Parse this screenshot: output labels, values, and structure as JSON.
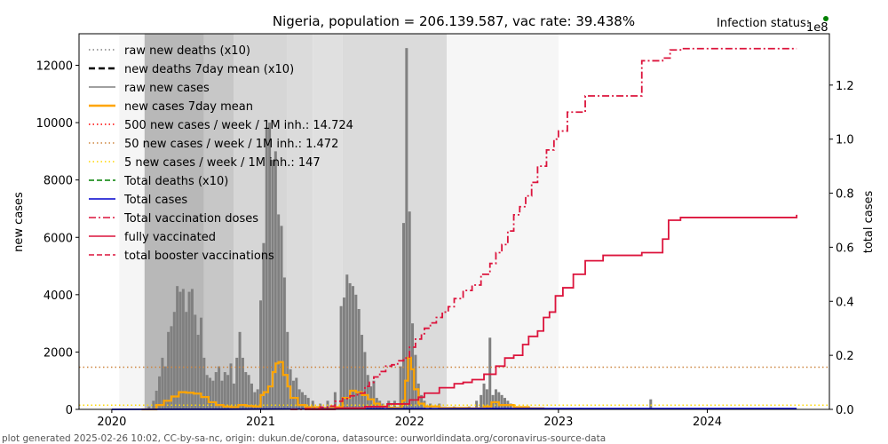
{
  "chart_data": {
    "type": "bar",
    "title": "Nigeria, population = 206.139.587, vac rate: 39.438%",
    "status_label": "Infection status:",
    "status_color": "#008000",
    "right_axis_multiplier": "1e8",
    "footer": "plot generated 2025-02-26 10:02, CC-by-sa-nc, origin: dukun.de/corona, datasource: ourworldindata.org/coronavirus-source-data",
    "xlabel": "",
    "ylabel": "new cases",
    "y2label": "total cases",
    "xlim": [
      2019.78,
      2024.82
    ],
    "ylim": [
      0,
      13100
    ],
    "y2lim": [
      0,
      1.39
    ],
    "x_ticks": [
      {
        "v": 2020,
        "label": "2020"
      },
      {
        "v": 2021,
        "label": "2021"
      },
      {
        "v": 2022,
        "label": "2022"
      },
      {
        "v": 2023,
        "label": "2023"
      },
      {
        "v": 2024,
        "label": "2024"
      }
    ],
    "y_ticks": [
      {
        "v": 0,
        "label": "0"
      },
      {
        "v": 2000,
        "label": "2000"
      },
      {
        "v": 4000,
        "label": "4000"
      },
      {
        "v": 6000,
        "label": "6000"
      },
      {
        "v": 8000,
        "label": "8000"
      },
      {
        "v": 10000,
        "label": "10000"
      },
      {
        "v": 12000,
        "label": "12000"
      }
    ],
    "y2_ticks": [
      {
        "v": 0,
        "label": "0.0"
      },
      {
        "v": 0.2,
        "label": "0.2"
      },
      {
        "v": 0.4,
        "label": "0.4"
      },
      {
        "v": 0.6,
        "label": "0.6"
      },
      {
        "v": 0.8,
        "label": "0.8"
      },
      {
        "v": 1.0,
        "label": "1.0"
      },
      {
        "v": 1.2,
        "label": "1.2"
      }
    ],
    "legend": [
      {
        "label": "raw new deaths (x10)",
        "color": "#808080",
        "style": "dotted"
      },
      {
        "label": "new deaths 7day mean (x10)",
        "color": "#000000",
        "style": "dashed-bold"
      },
      {
        "label": "raw new cases",
        "color": "#808080",
        "style": "solid"
      },
      {
        "label": "new cases 7day mean",
        "color": "#ffa500",
        "style": "solid-bold"
      },
      {
        "label": "500 new cases / week / 1M inh.: 14.724",
        "color": "#ff0000",
        "style": "dotted"
      },
      {
        "label": "50 new cases / week / 1M inh.: 1.472",
        "color": "#cd853f",
        "style": "dotted"
      },
      {
        "label": "5 new cases / week / 1M inh.: 147",
        "color": "#ffd700",
        "style": "dotted"
      },
      {
        "label": "Total deaths (x10)",
        "color": "#008000",
        "style": "dashed"
      },
      {
        "label": "Total cases",
        "color": "#0000cd",
        "style": "solid"
      },
      {
        "label": "Total vaccination doses",
        "color": "#dc143c",
        "style": "dashdot"
      },
      {
        "label": "fully vaccinated",
        "color": "#dc143c",
        "style": "solid"
      },
      {
        "label": "total booster vaccinations",
        "color": "#dc143c",
        "style": "dashed"
      }
    ],
    "legend_position": "top-left",
    "thresholds": [
      {
        "name": "500 new cases / week / 1M inh.",
        "value": 14724,
        "color": "#ff0000"
      },
      {
        "name": "50 new cases / week / 1M inh.",
        "value": 1472,
        "color": "#cd853f"
      },
      {
        "name": "5 new cases / week / 1M inh.",
        "value": 147,
        "color": "#ffd700"
      }
    ],
    "shading_bands": [
      {
        "from": 2020.05,
        "to": 2020.22,
        "gray": 0.96
      },
      {
        "from": 2020.22,
        "to": 2020.62,
        "gray": 0.72
      },
      {
        "from": 2020.62,
        "to": 2020.82,
        "gray": 0.78
      },
      {
        "from": 2020.82,
        "to": 2021.18,
        "gray": 0.84
      },
      {
        "from": 2021.18,
        "to": 2021.35,
        "gray": 0.86
      },
      {
        "from": 2021.35,
        "to": 2021.55,
        "gray": 0.88
      },
      {
        "from": 2021.55,
        "to": 2022.25,
        "gray": 0.86
      },
      {
        "from": 2022.25,
        "to": 2023.0,
        "gray": 0.965
      }
    ],
    "series": [
      {
        "name": "raw new cases",
        "type": "bar",
        "color": "#808080",
        "x": [
          2020.25,
          2020.28,
          2020.3,
          2020.32,
          2020.34,
          2020.36,
          2020.38,
          2020.4,
          2020.42,
          2020.44,
          2020.46,
          2020.48,
          2020.5,
          2020.52,
          2020.54,
          2020.56,
          2020.58,
          2020.6,
          2020.62,
          2020.64,
          2020.66,
          2020.68,
          2020.7,
          2020.72,
          2020.74,
          2020.76,
          2020.78,
          2020.8,
          2020.82,
          2020.84,
          2020.86,
          2020.88,
          2020.9,
          2020.92,
          2020.94,
          2020.96,
          2020.98,
          2021.0,
          2021.02,
          2021.04,
          2021.06,
          2021.08,
          2021.1,
          2021.12,
          2021.14,
          2021.16,
          2021.18,
          2021.2,
          2021.22,
          2021.24,
          2021.26,
          2021.28,
          2021.3,
          2021.32,
          2021.35,
          2021.4,
          2021.45,
          2021.5,
          2021.54,
          2021.56,
          2021.58,
          2021.6,
          2021.62,
          2021.64,
          2021.66,
          2021.68,
          2021.7,
          2021.72,
          2021.74,
          2021.76,
          2021.78,
          2021.8,
          2021.82,
          2021.86,
          2021.9,
          2021.94,
          2021.96,
          2021.98,
          2022.0,
          2022.02,
          2022.04,
          2022.06,
          2022.08,
          2022.1,
          2022.14,
          2022.2,
          2022.3,
          2022.4,
          2022.45,
          2022.48,
          2022.5,
          2022.52,
          2022.54,
          2022.56,
          2022.58,
          2022.6,
          2022.62,
          2022.64,
          2022.66,
          2022.68,
          2022.72,
          2022.8,
          2023.15,
          2023.62
        ],
        "values": [
          100,
          300,
          650,
          1150,
          1800,
          1500,
          2700,
          2900,
          3400,
          4300,
          4100,
          4200,
          3400,
          4100,
          4200,
          3300,
          2600,
          3200,
          1800,
          1200,
          1100,
          1000,
          1300,
          1500,
          1000,
          1300,
          1200,
          1600,
          900,
          1800,
          2700,
          1800,
          1300,
          1200,
          900,
          600,
          700,
          3800,
          5800,
          9800,
          10000,
          8700,
          9000,
          6800,
          6400,
          4600,
          2700,
          1400,
          1000,
          1100,
          700,
          600,
          500,
          400,
          300,
          200,
          300,
          600,
          3600,
          3900,
          4700,
          4400,
          4300,
          4000,
          3500,
          2600,
          2000,
          1200,
          800,
          1000,
          400,
          300,
          200,
          300,
          300,
          1500,
          6500,
          12600,
          6900,
          3000,
          1900,
          900,
          500,
          300,
          200,
          200,
          100,
          100,
          300,
          500,
          900,
          700,
          2500,
          500,
          700,
          600,
          500,
          400,
          300,
          200,
          100,
          100,
          50,
          350
        ]
      },
      {
        "name": "new cases 7day mean",
        "type": "step",
        "color": "#ffa500",
        "x": [
          2020.2,
          2020.3,
          2020.35,
          2020.4,
          2020.45,
          2020.5,
          2020.55,
          2020.6,
          2020.65,
          2020.7,
          2020.75,
          2020.8,
          2020.85,
          2020.9,
          2020.95,
          2021.0,
          2021.02,
          2021.05,
          2021.08,
          2021.1,
          2021.12,
          2021.15,
          2021.18,
          2021.2,
          2021.25,
          2021.3,
          2021.4,
          2021.5,
          2021.55,
          2021.6,
          2021.64,
          2021.68,
          2021.72,
          2021.76,
          2021.8,
          2021.85,
          2021.9,
          2021.95,
          2021.97,
          2021.99,
          2022.01,
          2022.03,
          2022.06,
          2022.1,
          2022.2,
          2022.4,
          2022.5,
          2022.55,
          2022.6,
          2022.7,
          2022.8,
          2022.9
        ],
        "values": [
          0,
          150,
          300,
          450,
          600,
          580,
          550,
          430,
          250,
          150,
          100,
          80,
          150,
          120,
          100,
          500,
          600,
          800,
          1300,
          1600,
          1650,
          1200,
          800,
          400,
          150,
          80,
          50,
          80,
          400,
          650,
          600,
          500,
          350,
          200,
          100,
          60,
          50,
          300,
          1000,
          1800,
          1400,
          700,
          200,
          100,
          50,
          40,
          100,
          250,
          150,
          80,
          40,
          20
        ]
      },
      {
        "name": "Total cases",
        "type": "line",
        "axis": "right",
        "color": "#0000cd",
        "x": [
          2020.0,
          2020.5,
          2021.0,
          2021.5,
          2022.0,
          2022.5,
          2023.0,
          2024.0,
          2024.6
        ],
        "values": [
          0.0,
          0.0003,
          0.001,
          0.0017,
          0.0024,
          0.0026,
          0.0027,
          0.0027,
          0.0027
        ]
      },
      {
        "name": "Total vaccination doses",
        "type": "step",
        "axis": "right",
        "color": "#dc143c",
        "style": "dashdot",
        "x": [
          2021.2,
          2021.3,
          2021.4,
          2021.45,
          2021.5,
          2021.55,
          2021.6,
          2021.65,
          2021.7,
          2021.73,
          2021.76,
          2021.8,
          2021.84,
          2021.88,
          2021.92,
          2021.96,
          2022.0,
          2022.04,
          2022.08,
          2022.1,
          2022.14,
          2022.18,
          2022.22,
          2022.26,
          2022.3,
          2022.36,
          2022.42,
          2022.48,
          2022.54,
          2022.58,
          2022.62,
          2022.66,
          2022.7,
          2022.74,
          2022.78,
          2022.82,
          2022.86,
          2022.92,
          2022.97,
          2023.0,
          2023.06,
          2023.18,
          2023.33,
          2023.56,
          2023.7,
          2023.75,
          2023.82,
          2024.6
        ],
        "values": [
          0,
          0.003,
          0.008,
          0.012,
          0.03,
          0.04,
          0.05,
          0.06,
          0.085,
          0.1,
          0.12,
          0.14,
          0.16,
          0.165,
          0.18,
          0.19,
          0.23,
          0.26,
          0.28,
          0.3,
          0.32,
          0.34,
          0.36,
          0.38,
          0.41,
          0.44,
          0.46,
          0.5,
          0.54,
          0.58,
          0.61,
          0.66,
          0.72,
          0.75,
          0.79,
          0.84,
          0.9,
          0.96,
          1.0,
          1.03,
          1.1,
          1.16,
          1.16,
          1.29,
          1.3,
          1.33,
          1.335,
          1.335
        ]
      },
      {
        "name": "fully vaccinated",
        "type": "step",
        "axis": "right",
        "color": "#dc143c",
        "style": "solid",
        "x": [
          2021.3,
          2021.5,
          2021.7,
          2021.85,
          2022.0,
          2022.06,
          2022.1,
          2022.2,
          2022.3,
          2022.36,
          2022.42,
          2022.5,
          2022.58,
          2022.64,
          2022.7,
          2022.76,
          2022.8,
          2022.86,
          2022.9,
          2022.94,
          2022.98,
          2023.03,
          2023.1,
          2023.18,
          2023.3,
          2023.56,
          2023.7,
          2023.74,
          2023.82,
          2024.6
        ],
        "values": [
          0,
          0.005,
          0.01,
          0.02,
          0.035,
          0.045,
          0.06,
          0.08,
          0.095,
          0.1,
          0.11,
          0.13,
          0.16,
          0.19,
          0.2,
          0.24,
          0.27,
          0.29,
          0.34,
          0.36,
          0.42,
          0.45,
          0.5,
          0.55,
          0.57,
          0.58,
          0.63,
          0.7,
          0.71,
          0.72
        ]
      }
    ]
  }
}
